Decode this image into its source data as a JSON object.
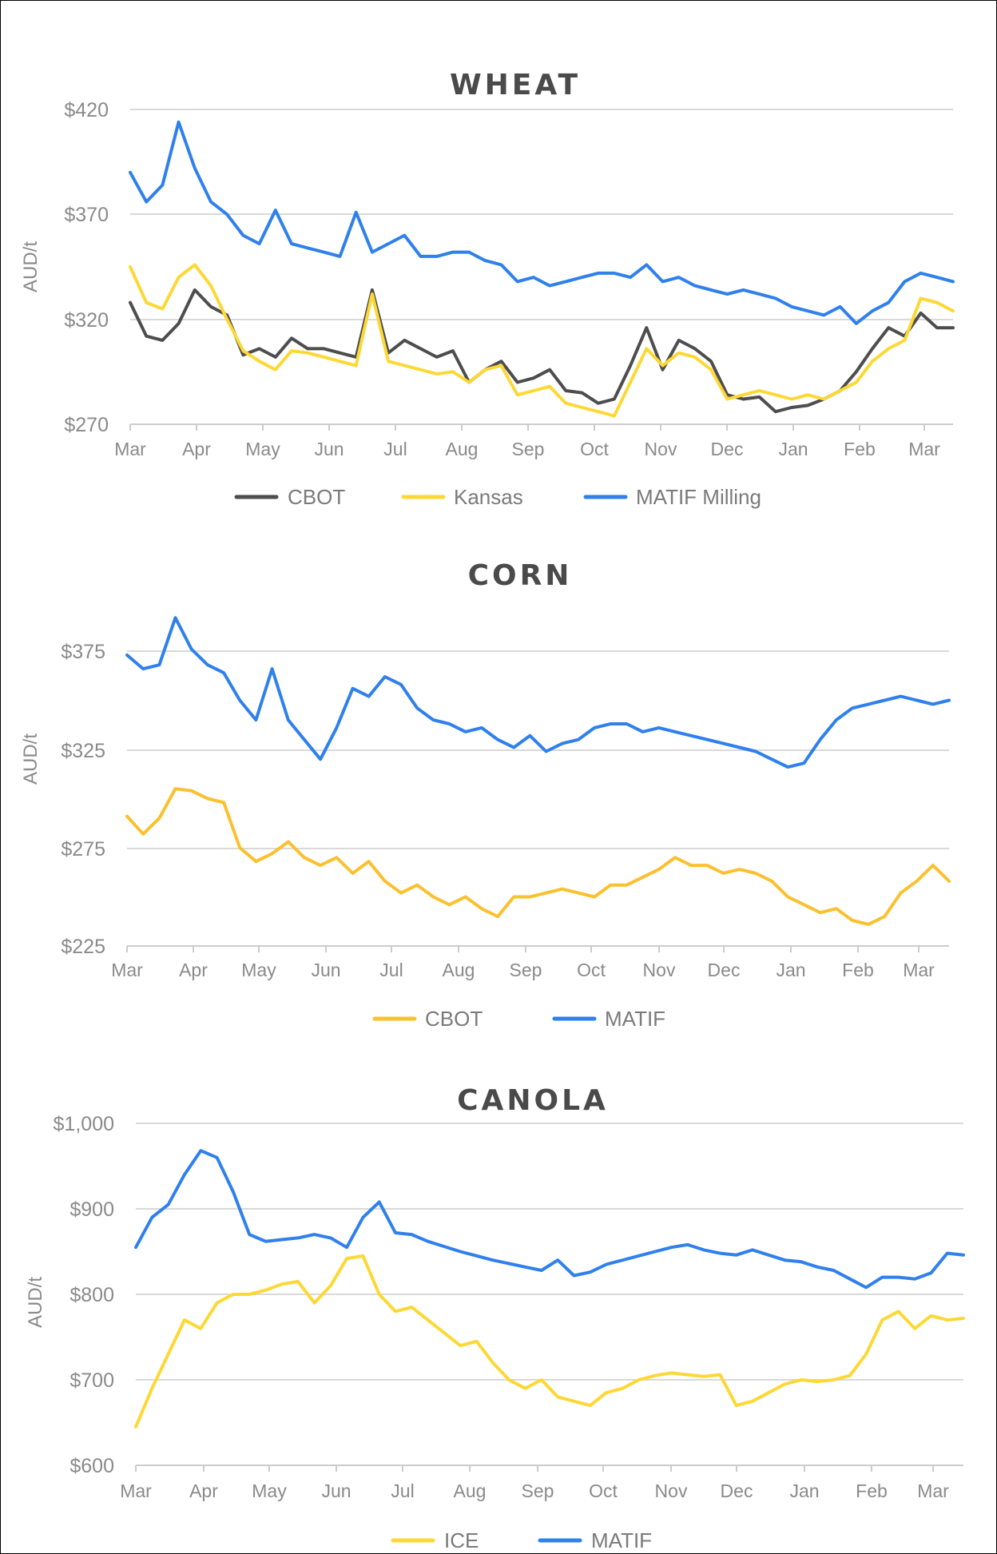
{
  "chart_data": [
    {
      "type": "line",
      "title": "WHEAT",
      "xlabel": "",
      "ylabel": "AUD/t",
      "ylim": [
        270,
        420
      ],
      "yticks": [
        "$420",
        "$370",
        "$320",
        "$270"
      ],
      "ytick_values": [
        420,
        370,
        320,
        270
      ],
      "categories": [
        "Mar",
        "Apr",
        "May",
        "Jun",
        "Jul",
        "Aug",
        "Sep",
        "Oct",
        "Nov",
        "Dec",
        "Jan",
        "Feb",
        "Mar"
      ],
      "grid": true,
      "legend_position": "bottom",
      "series": [
        {
          "name": "CBOT",
          "color": "#4d4d4d",
          "values": [
            328,
            312,
            310,
            318,
            334,
            326,
            322,
            303,
            306,
            302,
            311,
            306,
            306,
            304,
            302,
            334,
            304,
            310,
            306,
            302,
            305,
            290,
            296,
            300,
            290,
            292,
            296,
            286,
            285,
            280,
            282,
            298,
            316,
            296,
            310,
            306,
            300,
            284,
            282,
            283,
            276,
            278,
            279,
            282,
            286,
            295,
            306,
            316,
            312,
            323,
            316,
            316
          ]
        },
        {
          "name": "Kansas",
          "color": "#fdd835",
          "values": [
            345,
            328,
            325,
            340,
            346,
            336,
            320,
            305,
            300,
            296,
            305,
            304,
            302,
            300,
            298,
            332,
            300,
            298,
            296,
            294,
            295,
            290,
            296,
            298,
            284,
            286,
            288,
            280,
            278,
            276,
            274,
            290,
            306,
            298,
            304,
            302,
            296,
            282,
            284,
            286,
            284,
            282,
            284,
            282,
            286,
            290,
            300,
            306,
            310,
            330,
            328,
            324
          ]
        },
        {
          "name": "MATIF Milling",
          "color": "#2f80ed",
          "values": [
            390,
            376,
            384,
            414,
            392,
            376,
            370,
            360,
            356,
            372,
            356,
            354,
            352,
            350,
            371,
            352,
            356,
            360,
            350,
            350,
            352,
            352,
            348,
            346,
            338,
            340,
            336,
            338,
            340,
            342,
            342,
            340,
            346,
            338,
            340,
            336,
            334,
            332,
            334,
            332,
            330,
            326,
            324,
            322,
            326,
            318,
            324,
            328,
            338,
            342,
            340,
            338
          ]
        }
      ]
    },
    {
      "type": "line",
      "title": "CORN",
      "xlabel": "",
      "ylabel": "AUD/t",
      "ylim": [
        225,
        375
      ],
      "yticks": [
        "$375",
        "$325",
        "$275",
        "$225"
      ],
      "ytick_values": [
        375,
        325,
        275,
        225
      ],
      "categories": [
        "Mar",
        "Apr",
        "May",
        "Jun",
        "Jul",
        "Aug",
        "Sep",
        "Oct",
        "Nov",
        "Dec",
        "Jan",
        "Feb",
        "Mar"
      ],
      "grid": true,
      "legend_position": "bottom",
      "series": [
        {
          "name": "CBOT",
          "color": "#fbc02d",
          "values": [
            291,
            282,
            290,
            305,
            304,
            300,
            298,
            275,
            268,
            272,
            278,
            270,
            266,
            270,
            262,
            268,
            258,
            252,
            256,
            250,
            246,
            250,
            244,
            240,
            250,
            250,
            252,
            254,
            252,
            250,
            256,
            256,
            260,
            264,
            270,
            266,
            266,
            262,
            264,
            262,
            258,
            250,
            246,
            242,
            244,
            238,
            236,
            240,
            252,
            258,
            266,
            258
          ]
        },
        {
          "name": "MATIF",
          "color": "#2f80ed",
          "values": [
            373,
            366,
            368,
            392,
            376,
            368,
            364,
            350,
            340,
            366,
            340,
            330,
            320,
            336,
            356,
            352,
            362,
            358,
            346,
            340,
            338,
            334,
            336,
            330,
            326,
            332,
            324,
            328,
            330,
            336,
            338,
            338,
            334,
            336,
            334,
            332,
            330,
            328,
            326,
            324,
            320,
            316,
            318,
            330,
            340,
            346,
            348,
            350,
            352,
            350,
            348,
            350
          ]
        }
      ]
    },
    {
      "type": "line",
      "title": "CANOLA",
      "xlabel": "",
      "ylabel": "AUD/t",
      "ylim": [
        600,
        1000
      ],
      "yticks": [
        "$1,000",
        "$900",
        "$800",
        "$700",
        "$600"
      ],
      "ytick_values": [
        1000,
        900,
        800,
        700,
        600
      ],
      "categories": [
        "Mar",
        "Apr",
        "May",
        "Jun",
        "Jul",
        "Aug",
        "Sep",
        "Oct",
        "Nov",
        "Dec",
        "Jan",
        "Feb",
        "Mar"
      ],
      "grid": true,
      "legend_position": "bottom",
      "series": [
        {
          "name": "ICE",
          "color": "#fdd835",
          "values": [
            645,
            690,
            730,
            770,
            760,
            790,
            800,
            800,
            805,
            812,
            815,
            790,
            810,
            842,
            845,
            800,
            780,
            785,
            770,
            755,
            740,
            745,
            720,
            700,
            690,
            700,
            680,
            675,
            670,
            685,
            690,
            700,
            705,
            708,
            706,
            704,
            706,
            670,
            675,
            685,
            695,
            700,
            698,
            700,
            705,
            730,
            770,
            780,
            760,
            775,
            770,
            772
          ]
        },
        {
          "name": "MATIF",
          "color": "#2f80ed",
          "values": [
            855,
            890,
            905,
            940,
            968,
            960,
            920,
            870,
            862,
            864,
            866,
            870,
            866,
            855,
            890,
            908,
            872,
            870,
            862,
            856,
            850,
            845,
            840,
            836,
            832,
            828,
            840,
            822,
            826,
            835,
            840,
            845,
            850,
            855,
            858,
            852,
            848,
            846,
            852,
            846,
            840,
            838,
            832,
            828,
            818,
            808,
            820,
            820,
            818,
            825,
            848,
            846
          ]
        }
      ]
    }
  ],
  "charts": [
    {
      "title": "WHEAT",
      "ylabel": "AUD/t",
      "yticks": [
        "$420",
        "$370",
        "$320",
        "$270"
      ],
      "months": [
        "Mar",
        "Apr",
        "May",
        "Jun",
        "Jul",
        "Aug",
        "Sep",
        "Oct",
        "Nov",
        "Dec",
        "Jan",
        "Feb",
        "Mar"
      ],
      "legend": [
        "CBOT",
        "Kansas",
        "MATIF Milling"
      ]
    },
    {
      "title": "CORN",
      "ylabel": "AUD/t",
      "yticks": [
        "$375",
        "$325",
        "$275",
        "$225"
      ],
      "months": [
        "Mar",
        "Apr",
        "May",
        "Jun",
        "Jul",
        "Aug",
        "Sep",
        "Oct",
        "Nov",
        "Dec",
        "Jan",
        "Feb",
        "Mar"
      ],
      "legend": [
        "CBOT",
        "MATIF"
      ]
    },
    {
      "title": "CANOLA",
      "ylabel": "AUD/t",
      "yticks": [
        "$1,000",
        "$900",
        "$800",
        "$700",
        "$600"
      ],
      "months": [
        "Mar",
        "Apr",
        "May",
        "Jun",
        "Jul",
        "Aug",
        "Sep",
        "Oct",
        "Nov",
        "Dec",
        "Jan",
        "Feb",
        "Mar"
      ],
      "legend": [
        "ICE",
        "MATIF"
      ]
    }
  ],
  "colors": {
    "cbot_wheat": "#4d4d4d",
    "kansas": "#fdd835",
    "matif": "#2f80ed",
    "cbot_corn": "#fbc02d",
    "ice": "#fdd835",
    "grid": "#d9d9d9",
    "text": "#8a8a8a",
    "title": "#4a4a4a"
  }
}
